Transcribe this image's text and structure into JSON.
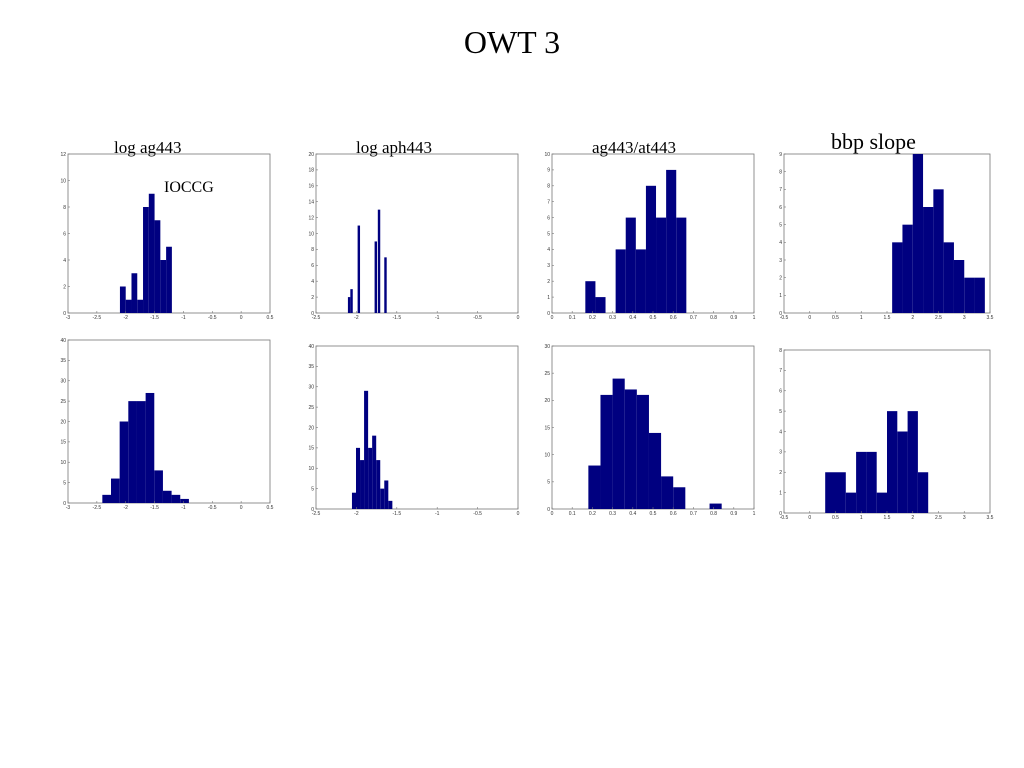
{
  "slide": {
    "title": "OWT 3",
    "column_titles": [
      "log ag443",
      "log aph443",
      "ag443/at443",
      "bbp slope"
    ],
    "annotation": "IOCCG"
  },
  "colors": {
    "bar": "#000080",
    "axis": "#777777"
  },
  "chart_data": [
    {
      "type": "bar",
      "title": "log ag443",
      "row": "top",
      "xlim": [
        -3,
        0.5
      ],
      "ylim": [
        0,
        12
      ],
      "bin_width": 0.1,
      "xticks": [
        -3,
        -2.5,
        -2,
        -1.5,
        -1,
        -0.5,
        0,
        0.5
      ],
      "xticklabels": [
        "-3",
        "-2.5",
        "-2",
        "-1.5",
        "-1",
        "-0.5",
        "0",
        "0.5"
      ],
      "yticks": [
        0,
        2,
        4,
        6,
        8,
        10,
        12
      ],
      "yticklabels": [
        "0",
        "2",
        "4",
        "6",
        "8",
        "10",
        "12"
      ],
      "bins": [
        {
          "x": -2.05,
          "y": 2
        },
        {
          "x": -1.95,
          "y": 1
        },
        {
          "x": -1.85,
          "y": 3
        },
        {
          "x": -1.75,
          "y": 1
        },
        {
          "x": -1.65,
          "y": 8
        },
        {
          "x": -1.55,
          "y": 9
        },
        {
          "x": -1.45,
          "y": 7
        },
        {
          "x": -1.35,
          "y": 4
        },
        {
          "x": -1.25,
          "y": 5
        }
      ]
    },
    {
      "type": "bar",
      "title": "log aph443",
      "row": "top",
      "xlim": [
        -2.5,
        0
      ],
      "ylim": [
        0,
        20
      ],
      "bin_width": 0.03,
      "xticks": [
        -2.5,
        -2,
        -1.5,
        -1,
        -0.5,
        0
      ],
      "xticklabels": [
        "-2.5",
        "-2",
        "-1.5",
        "-1",
        "-0.5",
        "0"
      ],
      "yticks": [
        0,
        2,
        4,
        6,
        8,
        10,
        12,
        14,
        16,
        18,
        20
      ],
      "yticklabels": [
        "0",
        "2",
        "4",
        "6",
        "8",
        "10",
        "12",
        "14",
        "16",
        "18",
        "20"
      ],
      "bins": [
        {
          "x": -2.09,
          "y": 2
        },
        {
          "x": -2.06,
          "y": 3
        },
        {
          "x": -1.97,
          "y": 11
        },
        {
          "x": -1.76,
          "y": 9
        },
        {
          "x": -1.72,
          "y": 13
        },
        {
          "x": -1.64,
          "y": 7
        }
      ]
    },
    {
      "type": "bar",
      "title": "ag443/at443",
      "row": "top",
      "xlim": [
        0,
        1
      ],
      "ylim": [
        0,
        10
      ],
      "bin_width": 0.05,
      "xticks": [
        0,
        0.1,
        0.2,
        0.3,
        0.4,
        0.5,
        0.6,
        0.7,
        0.8,
        0.9,
        1
      ],
      "xticklabels": [
        "0",
        "0.1",
        "0.2",
        "0.3",
        "0.4",
        "0.5",
        "0.6",
        "0.7",
        "0.8",
        "0.9",
        "1"
      ],
      "yticks": [
        0,
        1,
        2,
        3,
        4,
        5,
        6,
        7,
        8,
        9,
        10
      ],
      "yticklabels": [
        "0",
        "1",
        "2",
        "3",
        "4",
        "5",
        "6",
        "7",
        "8",
        "9",
        "10"
      ],
      "bins": [
        {
          "x": 0.19,
          "y": 2
        },
        {
          "x": 0.24,
          "y": 1
        },
        {
          "x": 0.34,
          "y": 4
        },
        {
          "x": 0.39,
          "y": 6
        },
        {
          "x": 0.44,
          "y": 4
        },
        {
          "x": 0.49,
          "y": 8
        },
        {
          "x": 0.54,
          "y": 6
        },
        {
          "x": 0.59,
          "y": 9
        },
        {
          "x": 0.64,
          "y": 6
        }
      ]
    },
    {
      "type": "bar",
      "title": "bbp slope",
      "row": "top",
      "xlim": [
        -0.5,
        3.5
      ],
      "ylim": [
        0,
        9
      ],
      "bin_width": 0.2,
      "xticks": [
        -0.5,
        0,
        0.5,
        1,
        1.5,
        2,
        2.5,
        3,
        3.5
      ],
      "xticklabels": [
        "-0.5",
        "0",
        "0.5",
        "1",
        "1.5",
        "2",
        "2.5",
        "3",
        "3.5"
      ],
      "yticks": [
        0,
        1,
        2,
        3,
        4,
        5,
        6,
        7,
        8,
        9
      ],
      "yticklabels": [
        "0",
        "1",
        "2",
        "3",
        "4",
        "5",
        "6",
        "7",
        "8",
        "9"
      ],
      "bins": [
        {
          "x": 1.7,
          "y": 4
        },
        {
          "x": 1.9,
          "y": 5
        },
        {
          "x": 2.1,
          "y": 9
        },
        {
          "x": 2.3,
          "y": 6
        },
        {
          "x": 2.5,
          "y": 7
        },
        {
          "x": 2.7,
          "y": 4
        },
        {
          "x": 2.9,
          "y": 3
        },
        {
          "x": 3.1,
          "y": 2
        },
        {
          "x": 3.3,
          "y": 2
        }
      ]
    },
    {
      "type": "bar",
      "title": "log ag443",
      "row": "bottom",
      "xlim": [
        -3,
        0.5
      ],
      "ylim": [
        0,
        40
      ],
      "bin_width": 0.15,
      "xticks": [
        -3,
        -2.5,
        -2,
        -1.5,
        -1,
        -0.5,
        0,
        0.5
      ],
      "xticklabels": [
        "-3",
        "-2.5",
        "-2",
        "-1.5",
        "-1",
        "-0.5",
        "0",
        "0.5"
      ],
      "yticks": [
        0,
        5,
        10,
        15,
        20,
        25,
        30,
        35,
        40
      ],
      "yticklabels": [
        "0",
        "5",
        "10",
        "15",
        "20",
        "25",
        "30",
        "35",
        "40"
      ],
      "bins": [
        {
          "x": -2.33,
          "y": 2
        },
        {
          "x": -2.18,
          "y": 6
        },
        {
          "x": -2.03,
          "y": 20
        },
        {
          "x": -1.88,
          "y": 25
        },
        {
          "x": -1.73,
          "y": 25
        },
        {
          "x": -1.58,
          "y": 27
        },
        {
          "x": -1.43,
          "y": 8
        },
        {
          "x": -1.28,
          "y": 3
        },
        {
          "x": -1.13,
          "y": 2
        },
        {
          "x": -0.98,
          "y": 1
        }
      ]
    },
    {
      "type": "bar",
      "title": "log aph443",
      "row": "bottom",
      "xlim": [
        -2.5,
        0
      ],
      "ylim": [
        0,
        40
      ],
      "bin_width": 0.05,
      "xticks": [
        -2.5,
        -2,
        -1.5,
        -1,
        -0.5,
        0
      ],
      "xticklabels": [
        "-2.5",
        "-2",
        "-1.5",
        "-1",
        "-0.5",
        "0"
      ],
      "yticks": [
        0,
        5,
        10,
        15,
        20,
        25,
        30,
        35,
        40
      ],
      "yticklabels": [
        "0",
        "5",
        "10",
        "15",
        "20",
        "25",
        "30",
        "35",
        "40"
      ],
      "bins": [
        {
          "x": -2.03,
          "y": 4
        },
        {
          "x": -1.98,
          "y": 15
        },
        {
          "x": -1.93,
          "y": 12
        },
        {
          "x": -1.88,
          "y": 29
        },
        {
          "x": -1.83,
          "y": 15
        },
        {
          "x": -1.78,
          "y": 18
        },
        {
          "x": -1.73,
          "y": 12
        },
        {
          "x": -1.68,
          "y": 5
        },
        {
          "x": -1.63,
          "y": 7
        },
        {
          "x": -1.58,
          "y": 2
        }
      ]
    },
    {
      "type": "bar",
      "title": "ag443/at443",
      "row": "bottom",
      "xlim": [
        0,
        1
      ],
      "ylim": [
        0,
        30
      ],
      "bin_width": 0.06,
      "xticks": [
        0,
        0.1,
        0.2,
        0.3,
        0.4,
        0.5,
        0.6,
        0.7,
        0.8,
        0.9,
        1
      ],
      "xticklabels": [
        "0",
        "0.1",
        "0.2",
        "0.3",
        "0.4",
        "0.5",
        "0.6",
        "0.7",
        "0.8",
        "0.9",
        "1"
      ],
      "yticks": [
        0,
        5,
        10,
        15,
        20,
        25,
        30
      ],
      "yticklabels": [
        "0",
        "5",
        "10",
        "15",
        "20",
        "25",
        "30"
      ],
      "bins": [
        {
          "x": 0.21,
          "y": 8
        },
        {
          "x": 0.27,
          "y": 21
        },
        {
          "x": 0.33,
          "y": 24
        },
        {
          "x": 0.39,
          "y": 22
        },
        {
          "x": 0.45,
          "y": 21
        },
        {
          "x": 0.51,
          "y": 14
        },
        {
          "x": 0.57,
          "y": 6
        },
        {
          "x": 0.63,
          "y": 4
        },
        {
          "x": 0.69,
          "y": 0
        },
        {
          "x": 0.75,
          "y": 0
        },
        {
          "x": 0.81,
          "y": 1
        }
      ]
    },
    {
      "type": "bar",
      "title": "bbp slope",
      "row": "bottom",
      "xlim": [
        -0.5,
        3.5
      ],
      "ylim": [
        0,
        8
      ],
      "bin_width": 0.2,
      "xticks": [
        -0.5,
        0,
        0.5,
        1,
        1.5,
        2,
        2.5,
        3,
        3.5
      ],
      "xticklabels": [
        "-0.5",
        "0",
        "0.5",
        "1",
        "1.5",
        "2",
        "2.5",
        "3",
        "3.5"
      ],
      "yticks": [
        0,
        1,
        2,
        3,
        4,
        5,
        6,
        7,
        8
      ],
      "yticklabels": [
        "0",
        "1",
        "2",
        "3",
        "4",
        "5",
        "6",
        "7",
        "8"
      ],
      "bins": [
        {
          "x": 0.4,
          "y": 2
        },
        {
          "x": 0.6,
          "y": 2
        },
        {
          "x": 0.8,
          "y": 1
        },
        {
          "x": 1.0,
          "y": 3
        },
        {
          "x": 1.2,
          "y": 3
        },
        {
          "x": 1.4,
          "y": 1
        },
        {
          "x": 1.6,
          "y": 5
        },
        {
          "x": 1.8,
          "y": 4
        },
        {
          "x": 2.0,
          "y": 5
        },
        {
          "x": 2.2,
          "y": 2
        }
      ]
    }
  ]
}
